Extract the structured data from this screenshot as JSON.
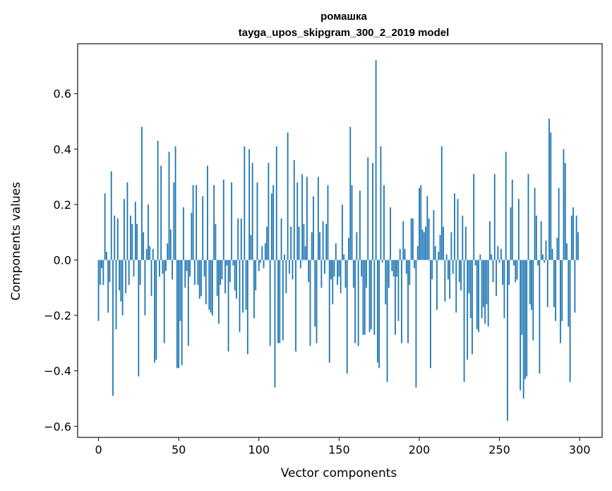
{
  "chart_data": {
    "type": "bar",
    "title": "ромашка",
    "subtitle": "tayga_upos_skipgram_300_2_2019 model",
    "xlabel": "Vector components",
    "ylabel": "Components values",
    "xlim": [
      -13,
      314
    ],
    "ylim": [
      -0.64,
      0.78
    ],
    "xticks": [
      0,
      50,
      100,
      150,
      200,
      250,
      300
    ],
    "xtick_labels": [
      "0",
      "50",
      "100",
      "150",
      "200",
      "250",
      "300"
    ],
    "yticks": [
      -0.6,
      -0.4,
      -0.2,
      0.0,
      0.2,
      0.4,
      0.6
    ],
    "ytick_labels": [
      "−0.6",
      "−0.4",
      "−0.2",
      "0.0",
      "0.2",
      "0.4",
      "0.6"
    ],
    "bar_color": "#1f77b4",
    "grid": false,
    "legend": "none",
    "x_start": 0,
    "values": [
      -0.22,
      -0.09,
      -0.03,
      -0.09,
      0.24,
      0.03,
      -0.19,
      -0.08,
      0.32,
      -0.49,
      0.16,
      -0.25,
      0.15,
      -0.11,
      -0.15,
      -0.2,
      0.22,
      -0.12,
      0.28,
      -0.09,
      0.16,
      0.13,
      -0.06,
      0.21,
      0.13,
      -0.42,
      -0.09,
      0.48,
      0.1,
      -0.2,
      0.04,
      0.2,
      0.05,
      -0.13,
      0.04,
      -0.37,
      -0.36,
      0.43,
      -0.06,
      0.34,
      -0.05,
      -0.3,
      -0.04,
      0.06,
      0.39,
      0.11,
      -0.07,
      0.28,
      0.41,
      -0.39,
      -0.39,
      -0.22,
      -0.38,
      0.19,
      -0.1,
      -0.04,
      -0.31,
      -0.06,
      0.17,
      0.27,
      -0.09,
      0.27,
      -0.09,
      -0.14,
      -0.13,
      0.23,
      -0.06,
      -0.16,
      0.34,
      -0.18,
      -0.19,
      -0.2,
      0.27,
      0.13,
      -0.13,
      -0.23,
      -0.09,
      -0.07,
      0.29,
      -0.12,
      -0.02,
      -0.33,
      -0.08,
      0.28,
      -0.02,
      -0.11,
      -0.14,
      0.15,
      -0.26,
      0.15,
      -0.19,
      0.41,
      -0.18,
      -0.34,
      0.4,
      0.09,
      0.35,
      -0.21,
      -0.11,
      0.28,
      -0.04,
      -0.01,
      0.05,
      -0.03,
      0.06,
      0.12,
      0.35,
      -0.31,
      0.24,
      0.27,
      -0.46,
      0.41,
      -0.3,
      -0.3,
      0.15,
      -0.29,
      0.02,
      -0.12,
      0.46,
      -0.05,
      0.12,
      -0.07,
      0.36,
      -0.33,
      0.28,
      0.12,
      -0.03,
      0.31,
      0.13,
      0.05,
      0.3,
      -0.08,
      -0.31,
      0.1,
      0.23,
      -0.24,
      -0.3,
      0.3,
      0.1,
      -0.1,
      0.14,
      -0.05,
      0.13,
      0.27,
      -0.37,
      -0.07,
      -0.16,
      -0.06,
      0.06,
      -0.09,
      -0.06,
      -0.12,
      0.2,
      0.02,
      -0.1,
      -0.41,
      0.08,
      0.48,
      0.27,
      -0.1,
      -0.3,
      0.1,
      -0.31,
      0.25,
      -0.06,
      -0.27,
      -0.27,
      -0.1,
      0.37,
      -0.26,
      -0.25,
      0.35,
      -0.27,
      0.72,
      -0.37,
      -0.39,
      0.41,
      -0.01,
      0.27,
      -0.16,
      -0.44,
      -0.1,
      0.19,
      -0.04,
      -0.06,
      -0.27,
      -0.06,
      -0.22,
      0.04,
      -0.3,
      0.14,
      0.04,
      -0.05,
      -0.3,
      -0.09,
      0.15,
      0.15,
      -0.03,
      -0.46,
      0.05,
      0.26,
      0.27,
      0.11,
      0.1,
      0.12,
      0.23,
      0.15,
      -0.39,
      -0.07,
      0.18,
      0.05,
      -0.18,
      0.03,
      0.09,
      0.41,
      0.12,
      -0.15,
      0.02,
      -0.07,
      -0.14,
      0.1,
      -0.05,
      0.24,
      -0.19,
      0.22,
      -0.08,
      -0.11,
      0.16,
      -0.44,
      0.12,
      -0.36,
      -0.12,
      -0.21,
      -0.34,
      0.31,
      -0.02,
      -0.25,
      -0.26,
      0.02,
      -0.21,
      -0.17,
      -0.23,
      -0.16,
      -0.24,
      0.14,
      0.02,
      -0.08,
      0.31,
      -0.13,
      0.05,
      -0.01,
      0.04,
      -0.09,
      -0.21,
      0.39,
      -0.58,
      -0.09,
      0.19,
      0.29,
      -0.02,
      -0.08,
      -0.07,
      0.22,
      -0.47,
      -0.27,
      -0.5,
      -0.43,
      -0.42,
      0.31,
      -0.16,
      -0.18,
      -0.29,
      0.26,
      0.16,
      -0.02,
      -0.41,
      0.14,
      0.02,
      -0.01,
      0.07,
      -0.17,
      0.51,
      0.46,
      0.04,
      -0.17,
      -0.22,
      0.08,
      0.26,
      -0.3,
      -0.22,
      0.4,
      0.35,
      0.06,
      -0.24,
      -0.44,
      0.16,
      0.19,
      -0.19,
      0.16,
      0.1
    ]
  }
}
